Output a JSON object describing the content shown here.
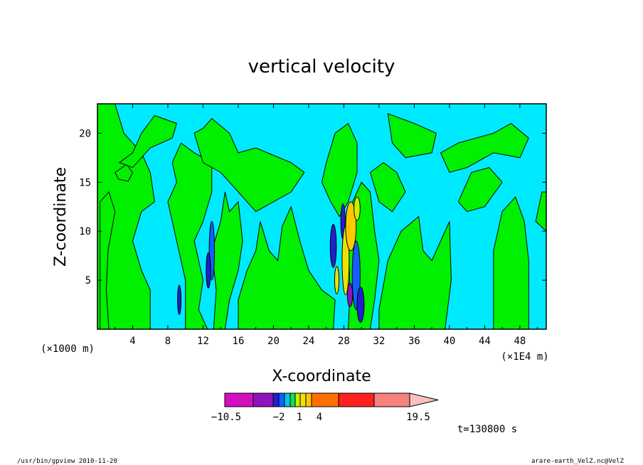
{
  "chart_data": {
    "type": "filled_contour",
    "title": "vertical velocity",
    "xlabel": "X-coordinate",
    "ylabel": "Z-coordinate",
    "x_scale_label": "(×1E4 m)",
    "y_scale_label": "(×1000 m)",
    "xlim": [
      0,
      51
    ],
    "ylim": [
      0,
      23
    ],
    "x_ticks": [
      4,
      8,
      12,
      16,
      20,
      24,
      28,
      32,
      36,
      40,
      44,
      48
    ],
    "y_ticks": [
      5,
      10,
      15,
      20
    ],
    "colorbar": {
      "labels": [
        "−10.5",
        "−2",
        "1",
        "4",
        "19.5"
      ],
      "label_values": [
        -10.5,
        -2,
        1,
        4,
        19.5
      ],
      "colors": [
        "#d40fbf",
        "#8c14b8",
        "#2020d0",
        "#1060ff",
        "#00c8e0",
        "#00e85a",
        "#c8f000",
        "#f0e000",
        "#ffc800",
        "#ff7000",
        "#ff2020",
        "#f88080"
      ],
      "extend": "max"
    },
    "background_color": "#00e8ff",
    "positive_fill": "#00ff00",
    "annotation": "t=130800 s"
  },
  "footer": {
    "left": "/usr/bin/gpview  2010-11-20",
    "right": "arare-earth_VelZ.nc@VelZ"
  }
}
